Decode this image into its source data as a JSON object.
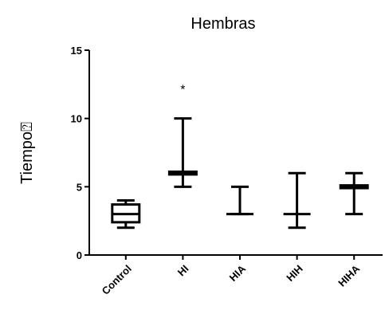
{
  "chart_data": {
    "type": "box",
    "title": "Hembras",
    "y_label": "Tiempo⍰",
    "categories": [
      "Control",
      "HI",
      "HIA",
      "HIH",
      "HIHA"
    ],
    "boxes": [
      {
        "min": 2,
        "q1": 2.4,
        "median": 3,
        "q3": 3.7,
        "max": 4
      },
      {
        "min": 5,
        "q1": 5.9,
        "median": 6,
        "q3": 6.1,
        "max": 10
      },
      {
        "min": 3,
        "q1": 3,
        "median": 3,
        "q3": 3,
        "max": 5
      },
      {
        "min": 2,
        "q1": 3,
        "median": 3,
        "q3": 3,
        "max": 6
      },
      {
        "min": 3,
        "q1": 4.9,
        "median": 5,
        "q3": 5.1,
        "max": 6
      }
    ],
    "color": "#000000",
    "ylim": [
      0,
      15
    ],
    "yticks": [
      0,
      5,
      10,
      15
    ],
    "annotations": [
      {
        "text": "*",
        "category": 1,
        "y": 12.3
      }
    ]
  }
}
